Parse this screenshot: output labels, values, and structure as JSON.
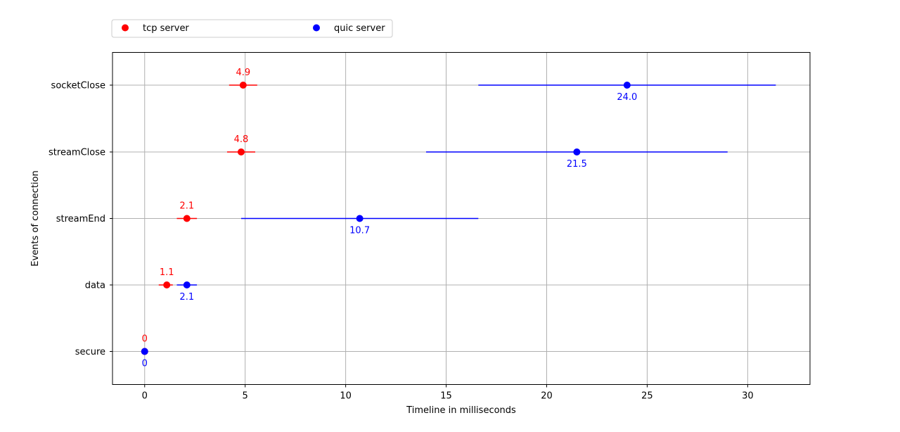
{
  "chart_data": {
    "type": "scatter",
    "xlabel": "Timeline in milliseconds",
    "ylabel": "Events of connection",
    "xlim": [
      -1.6,
      33.1
    ],
    "xticks": [
      0,
      5,
      10,
      15,
      20,
      25,
      30
    ],
    "categories": [
      "secure",
      "data",
      "streamEnd",
      "streamClose",
      "socketClose"
    ],
    "grid": true,
    "legend_position": "top-left, above plot",
    "series": [
      {
        "name": "tcp server",
        "color": "#ff0000",
        "label_position": "above",
        "points": [
          {
            "category": "secure",
            "value": 0,
            "err_low": 0,
            "err_high": 0,
            "label": "0"
          },
          {
            "category": "data",
            "value": 1.1,
            "err_low": 0.4,
            "err_high": 0.3,
            "label": "1.1"
          },
          {
            "category": "streamEnd",
            "value": 2.1,
            "err_low": 0.5,
            "err_high": 0.5,
            "label": "2.1"
          },
          {
            "category": "streamClose",
            "value": 4.8,
            "err_low": 0.7,
            "err_high": 0.7,
            "label": "4.8"
          },
          {
            "category": "socketClose",
            "value": 4.9,
            "err_low": 0.7,
            "err_high": 0.7,
            "label": "4.9"
          }
        ]
      },
      {
        "name": "quic server",
        "color": "#0000ff",
        "label_position": "below",
        "points": [
          {
            "category": "secure",
            "value": 0,
            "err_low": 0,
            "err_high": 0,
            "label": "0"
          },
          {
            "category": "data",
            "value": 2.1,
            "err_low": 0.5,
            "err_high": 0.5,
            "label": "2.1"
          },
          {
            "category": "streamEnd",
            "value": 10.7,
            "err_low": 5.9,
            "err_high": 5.9,
            "label": "10.7"
          },
          {
            "category": "streamClose",
            "value": 21.5,
            "err_low": 7.5,
            "err_high": 7.5,
            "label": "21.5"
          },
          {
            "category": "socketClose",
            "value": 24.0,
            "err_low": 7.4,
            "err_high": 7.4,
            "label": "24.0"
          }
        ]
      }
    ]
  }
}
